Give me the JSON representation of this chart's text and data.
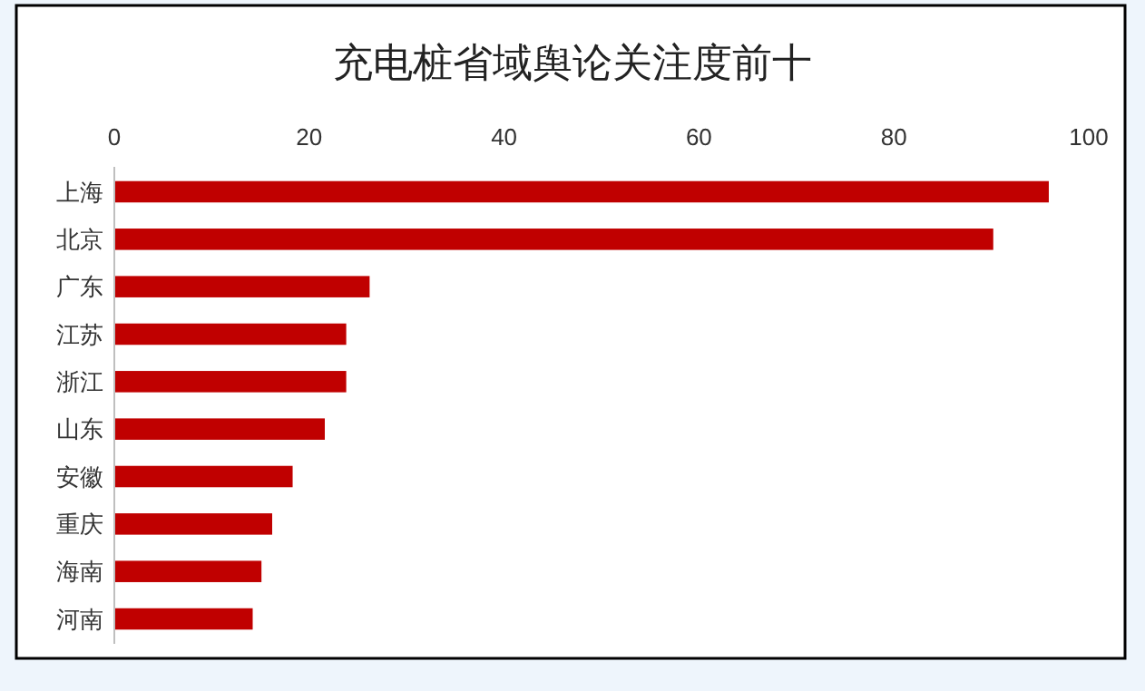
{
  "chart_data": {
    "type": "bar",
    "orientation": "horizontal",
    "title": "充电桩省域舆论关注度前十",
    "categories": [
      "上海",
      "北京",
      "广东",
      "江苏",
      "浙江",
      "山东",
      "安徽",
      "重庆",
      "海南",
      "河南"
    ],
    "values": [
      95.9,
      90.2,
      26.2,
      23.8,
      23.8,
      21.6,
      18.3,
      16.2,
      15.1,
      14.2
    ],
    "color": "#c00000",
    "xlim": [
      0,
      100
    ],
    "xticks": [
      0,
      20,
      40,
      60,
      80,
      100
    ]
  }
}
